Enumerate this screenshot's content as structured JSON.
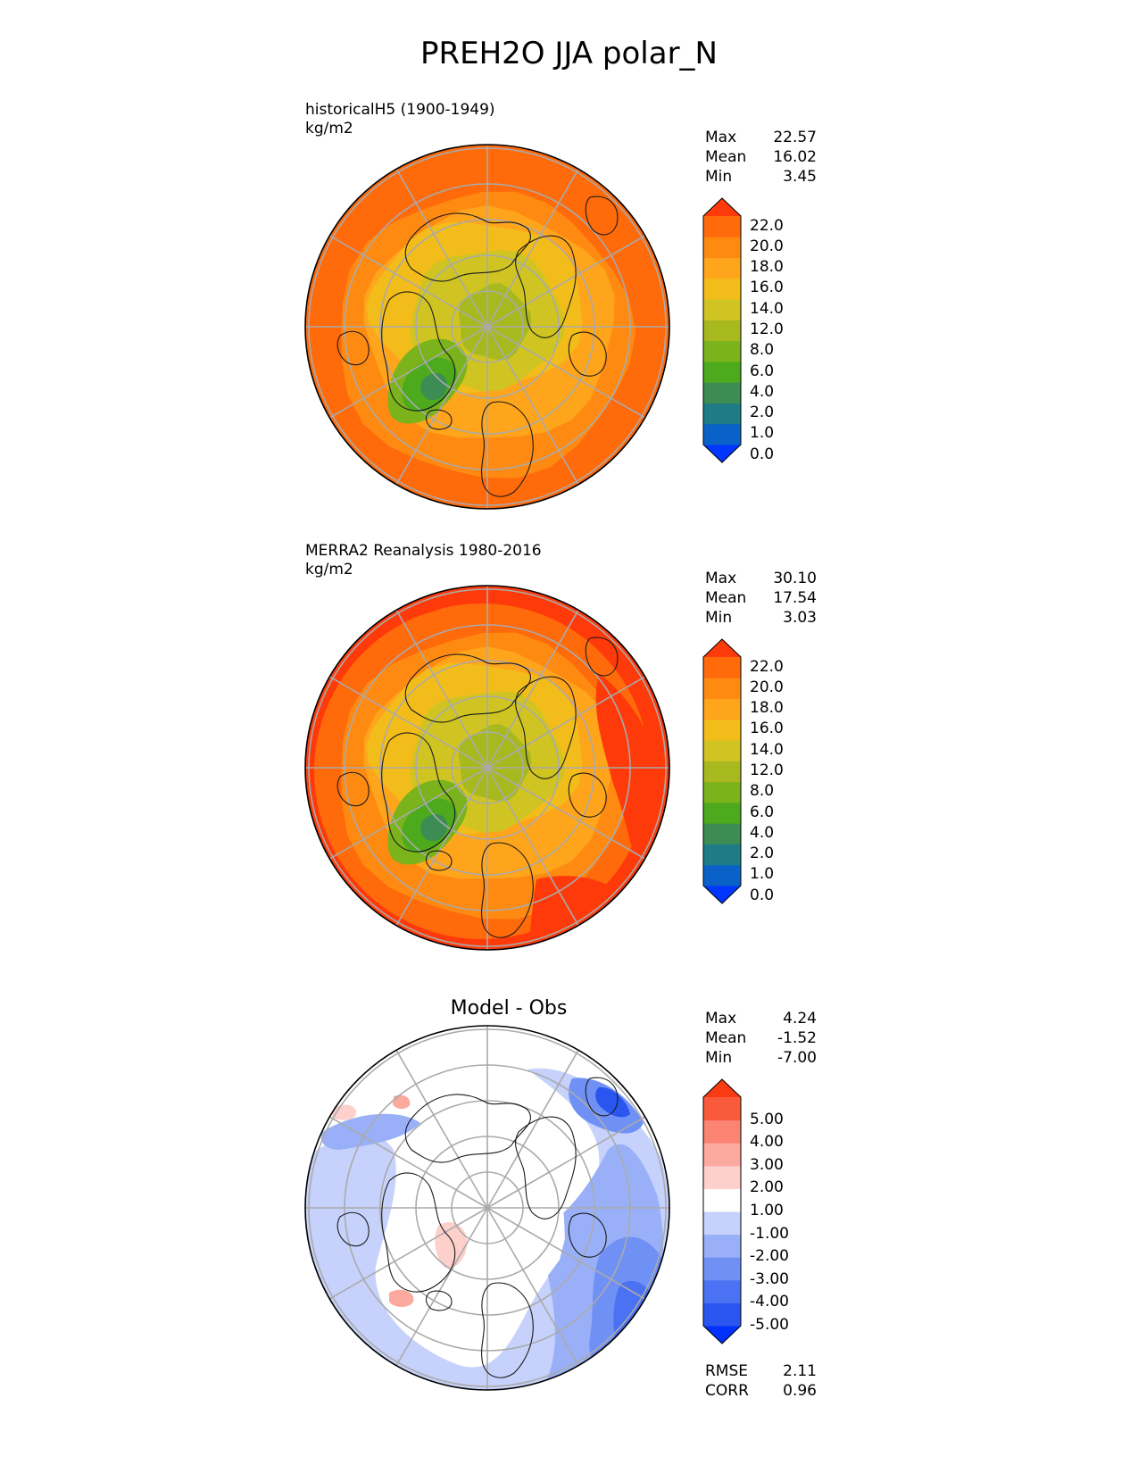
{
  "title": "PREH2O JJA polar_N",
  "panels": [
    {
      "id": "model",
      "subtitle_lines": [
        "historicalH5 (1900-1949)",
        "kg/m2"
      ],
      "stats": [
        {
          "label": "Max",
          "value": "22.57"
        },
        {
          "label": "Mean",
          "value": "16.02"
        },
        {
          "label": "Min",
          "value": "3.45"
        }
      ],
      "colorbar": {
        "ticks": [
          "22.0",
          "20.0",
          "18.0",
          "16.0",
          "14.0",
          "12.0",
          "8.0",
          "6.0",
          "4.0",
          "2.0",
          "1.0",
          "0.0"
        ],
        "colors": [
          "#0036ff",
          "#0a62c8",
          "#1f7b86",
          "#3c8c54",
          "#4caa1c",
          "#7ab31b",
          "#a7b91e",
          "#cfc422",
          "#f2bd1b",
          "#ffa51c",
          "#ff8a12",
          "#ff6a0a",
          "#ff3a0a"
        ]
      }
    },
    {
      "id": "obs",
      "subtitle_lines": [
        "MERRA2 Reanalysis 1980-2016",
        "kg/m2"
      ],
      "stats": [
        {
          "label": "Max",
          "value": "30.10"
        },
        {
          "label": "Mean",
          "value": "17.54"
        },
        {
          "label": "Min",
          "value": "3.03"
        }
      ],
      "colorbar": {
        "ticks": [
          "22.0",
          "20.0",
          "18.0",
          "16.0",
          "14.0",
          "12.0",
          "8.0",
          "6.0",
          "4.0",
          "2.0",
          "1.0",
          "0.0"
        ],
        "colors": [
          "#0036ff",
          "#0a62c8",
          "#1f7b86",
          "#3c8c54",
          "#4caa1c",
          "#7ab31b",
          "#a7b91e",
          "#cfc422",
          "#f2bd1b",
          "#ffa51c",
          "#ff8a12",
          "#ff6a0a",
          "#ff3a0a"
        ]
      }
    },
    {
      "id": "diff",
      "center_title": "Model - Obs",
      "stats": [
        {
          "label": "Max",
          "value": "4.24"
        },
        {
          "label": "Mean",
          "value": "-1.52"
        },
        {
          "label": "Min",
          "value": "-7.00"
        }
      ],
      "colorbar": {
        "ticks": [
          "5.00",
          "4.00",
          "3.00",
          "2.00",
          "1.00",
          "-1.00",
          "-2.00",
          "-3.00",
          "-4.00",
          "-5.00"
        ],
        "colors": [
          "#0031ff",
          "#2a55ee",
          "#4a72f2",
          "#6f91f6",
          "#99b0f8",
          "#c6d2fb",
          "#ffffff",
          "#fdd0cc",
          "#fca99f",
          "#fb8472",
          "#fa5a3c",
          "#f93a12"
        ]
      },
      "extra_stats": [
        {
          "label": "RMSE",
          "value": "2.11"
        },
        {
          "label": "CORR",
          "value": "0.96"
        }
      ]
    }
  ]
}
